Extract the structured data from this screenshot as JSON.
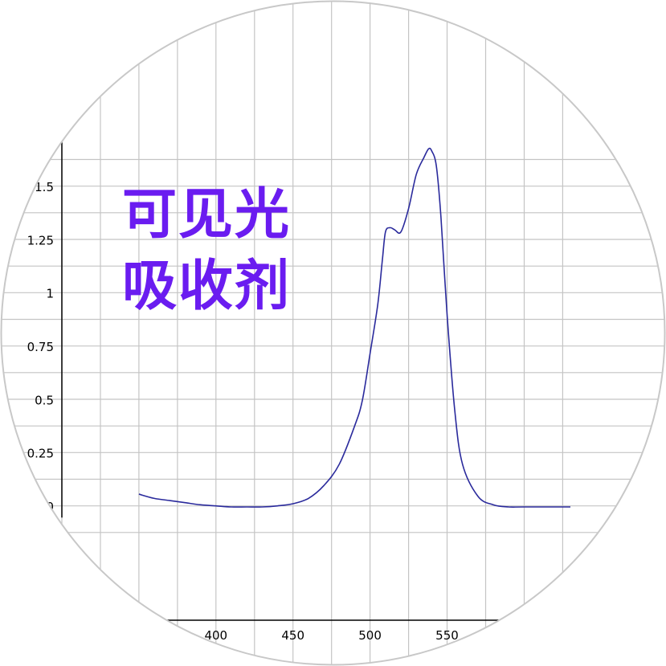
{
  "chart_data": {
    "type": "line",
    "title": "",
    "xlabel": "",
    "ylabel": "",
    "xlim": [
      300,
      630
    ],
    "ylim": [
      -0.12,
      1.72
    ],
    "grid": true,
    "grid_x_step": 25,
    "grid_y_step": 0.125,
    "line_color": "#2a2a9c",
    "grid_color": "#c4c4c4",
    "annotation_color": "#6a1cf0",
    "x_ticks": [
      {
        "value": 400,
        "label": "400"
      },
      {
        "value": 450,
        "label": "450"
      },
      {
        "value": 500,
        "label": "500"
      },
      {
        "value": 550,
        "label": "550"
      }
    ],
    "y_ticks": [
      {
        "value": 0,
        "label": "0"
      },
      {
        "value": 0.25,
        "label": "0.25"
      },
      {
        "value": 0.5,
        "label": "0.5"
      },
      {
        "value": 0.75,
        "label": "0.75"
      },
      {
        "value": 1,
        "label": "1"
      },
      {
        "value": 1.25,
        "label": "1.25"
      },
      {
        "value": 1.5,
        "label": "1.5"
      }
    ],
    "annotation": [
      "可见光",
      "吸收剂"
    ],
    "series": [
      {
        "x": [
          350,
          360,
          370,
          380,
          390,
          400,
          410,
          420,
          430,
          440,
          450,
          460,
          470,
          480,
          490,
          495,
          500,
          505,
          508,
          510,
          513,
          516,
          520,
          525,
          530,
          535,
          538,
          540,
          543,
          546,
          550,
          555,
          560,
          570,
          580,
          590,
          600,
          630
        ],
        "y": [
          0.06,
          0.04,
          0.03,
          0.02,
          0.01,
          0.005,
          0.0,
          0.0,
          0.0,
          0.005,
          0.015,
          0.04,
          0.1,
          0.2,
          0.38,
          0.5,
          0.72,
          0.95,
          1.16,
          1.29,
          1.31,
          1.3,
          1.29,
          1.4,
          1.56,
          1.64,
          1.68,
          1.67,
          1.6,
          1.36,
          0.9,
          0.45,
          0.2,
          0.05,
          0.01,
          0.0,
          0.0,
          0.0
        ]
      }
    ]
  }
}
